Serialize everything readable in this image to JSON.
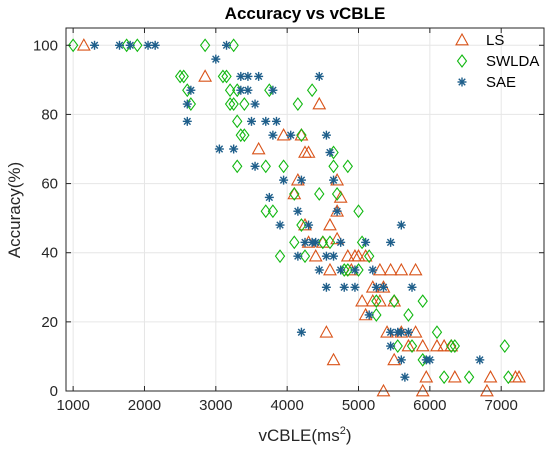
{
  "chart_data": {
    "type": "scatter",
    "title": "Accuracy vs vCBLE",
    "xlabel_main": "vCBLE(ms",
    "xlabel_sup": "2",
    "xlabel_end": ")",
    "ylabel": "Accuracy(%)",
    "xlim": [
      900,
      7600
    ],
    "ylim": [
      0,
      105
    ],
    "xticks": [
      1000,
      2000,
      3000,
      4000,
      5000,
      6000,
      7000
    ],
    "yticks": [
      0,
      20,
      40,
      60,
      80,
      100
    ],
    "grid": true,
    "legend_position": "top-right",
    "series": [
      {
        "name": "LS",
        "marker": "triangle",
        "color": "#D95319",
        "points": [
          [
            1150,
            100
          ],
          [
            2850,
            91
          ],
          [
            3600,
            70
          ],
          [
            3950,
            74
          ],
          [
            4200,
            74
          ],
          [
            4250,
            69
          ],
          [
            4300,
            69
          ],
          [
            4450,
            83
          ],
          [
            4100,
            57
          ],
          [
            4150,
            61
          ],
          [
            4700,
            61
          ],
          [
            4750,
            56
          ],
          [
            4700,
            52
          ],
          [
            4250,
            48
          ],
          [
            4300,
            43
          ],
          [
            4500,
            43
          ],
          [
            4600,
            48
          ],
          [
            4700,
            44
          ],
          [
            4850,
            39
          ],
          [
            4900,
            35
          ],
          [
            4950,
            39
          ],
          [
            5000,
            39
          ],
          [
            5100,
            39
          ],
          [
            4400,
            39
          ],
          [
            4600,
            35
          ],
          [
            5200,
            30
          ],
          [
            5300,
            35
          ],
          [
            5450,
            35
          ],
          [
            5600,
            35
          ],
          [
            5800,
            35
          ],
          [
            5050,
            26
          ],
          [
            5200,
            26
          ],
          [
            5300,
            26
          ],
          [
            5350,
            30
          ],
          [
            5500,
            26
          ],
          [
            5100,
            22
          ],
          [
            5400,
            17
          ],
          [
            5600,
            17
          ],
          [
            5800,
            17
          ],
          [
            4550,
            17
          ],
          [
            4650,
            9
          ],
          [
            5500,
            9
          ],
          [
            5700,
            13
          ],
          [
            5900,
            13
          ],
          [
            6100,
            13
          ],
          [
            6200,
            13
          ],
          [
            6300,
            13
          ],
          [
            6350,
            4
          ],
          [
            5950,
            4
          ],
          [
            5350,
            0
          ],
          [
            5900,
            0
          ],
          [
            6850,
            4
          ],
          [
            6800,
            0
          ],
          [
            7200,
            4
          ],
          [
            7250,
            4
          ]
        ]
      },
      {
        "name": "SWLDA",
        "marker": "diamond",
        "color": "#12B812",
        "points": [
          [
            1000,
            100
          ],
          [
            1750,
            100
          ],
          [
            1900,
            100
          ],
          [
            2850,
            100
          ],
          [
            3250,
            100
          ],
          [
            2500,
            91
          ],
          [
            2550,
            91
          ],
          [
            2600,
            87
          ],
          [
            3100,
            91
          ],
          [
            3150,
            91
          ],
          [
            3200,
            87
          ],
          [
            3300,
            87
          ],
          [
            3400,
            83
          ],
          [
            3200,
            83
          ],
          [
            3250,
            83
          ],
          [
            3750,
            87
          ],
          [
            2650,
            83
          ],
          [
            3300,
            78
          ],
          [
            4150,
            83
          ],
          [
            4350,
            87
          ],
          [
            3350,
            74
          ],
          [
            3400,
            74
          ],
          [
            3700,
            65
          ],
          [
            3950,
            65
          ],
          [
            3300,
            65
          ],
          [
            4200,
            74
          ],
          [
            4100,
            57
          ],
          [
            4450,
            57
          ],
          [
            4700,
            57
          ],
          [
            4650,
            65
          ],
          [
            4650,
            69
          ],
          [
            4850,
            65
          ],
          [
            3700,
            52
          ],
          [
            3800,
            52
          ],
          [
            4200,
            48
          ],
          [
            4100,
            43
          ],
          [
            4250,
            39
          ],
          [
            3900,
            39
          ],
          [
            4500,
            43
          ],
          [
            4600,
            43
          ],
          [
            5000,
            52
          ],
          [
            5050,
            43
          ],
          [
            5150,
            39
          ],
          [
            4800,
            35
          ],
          [
            4850,
            35
          ],
          [
            5000,
            35
          ],
          [
            5250,
            26
          ],
          [
            5500,
            26
          ],
          [
            5700,
            22
          ],
          [
            5900,
            26
          ],
          [
            5550,
            13
          ],
          [
            5750,
            13
          ],
          [
            5900,
            9
          ],
          [
            6100,
            17
          ],
          [
            6300,
            13
          ],
          [
            6350,
            13
          ],
          [
            6200,
            4
          ],
          [
            6550,
            4
          ],
          [
            7050,
            13
          ],
          [
            7100,
            4
          ],
          [
            5250,
            22
          ]
        ]
      },
      {
        "name": "SAE",
        "marker": "asterisk",
        "color": "#1F5F8B",
        "points": [
          [
            1300,
            100
          ],
          [
            1650,
            100
          ],
          [
            1800,
            100
          ],
          [
            2050,
            100
          ],
          [
            2150,
            100
          ],
          [
            3150,
            100
          ],
          [
            3000,
            96
          ],
          [
            2650,
            87
          ],
          [
            2600,
            83
          ],
          [
            2600,
            78
          ],
          [
            3350,
            91
          ],
          [
            3450,
            91
          ],
          [
            3600,
            91
          ],
          [
            3350,
            87
          ],
          [
            3450,
            87
          ],
          [
            3550,
            83
          ],
          [
            3800,
            87
          ],
          [
            3500,
            78
          ],
          [
            3700,
            78
          ],
          [
            3850,
            78
          ],
          [
            4450,
            91
          ],
          [
            3050,
            70
          ],
          [
            3250,
            70
          ],
          [
            3550,
            65
          ],
          [
            3800,
            74
          ],
          [
            4050,
            74
          ],
          [
            4550,
            74
          ],
          [
            4600,
            69
          ],
          [
            4650,
            61
          ],
          [
            4700,
            52
          ],
          [
            3950,
            61
          ],
          [
            4200,
            61
          ],
          [
            4150,
            52
          ],
          [
            3750,
            56
          ],
          [
            3900,
            48
          ],
          [
            4250,
            43
          ],
          [
            4400,
            43
          ],
          [
            4150,
            39
          ],
          [
            4300,
            48
          ],
          [
            4350,
            43
          ],
          [
            4450,
            35
          ],
          [
            4550,
            39
          ],
          [
            4650,
            39
          ],
          [
            4750,
            35
          ],
          [
            4800,
            30
          ],
          [
            4950,
            35
          ],
          [
            5250,
            30
          ],
          [
            5100,
            43
          ],
          [
            5450,
            43
          ],
          [
            5600,
            48
          ],
          [
            5350,
            30
          ],
          [
            5450,
            17
          ],
          [
            5550,
            17
          ],
          [
            5600,
            17
          ],
          [
            5700,
            17
          ],
          [
            4550,
            30
          ],
          [
            4200,
            17
          ],
          [
            5450,
            13
          ],
          [
            5600,
            9
          ],
          [
            5650,
            4
          ],
          [
            5950,
            9
          ],
          [
            6700,
            9
          ],
          [
            5200,
            35
          ],
          [
            4750,
            43
          ],
          [
            4950,
            30
          ],
          [
            5150,
            22
          ],
          [
            5750,
            30
          ],
          [
            6000,
            9
          ]
        ]
      }
    ]
  }
}
